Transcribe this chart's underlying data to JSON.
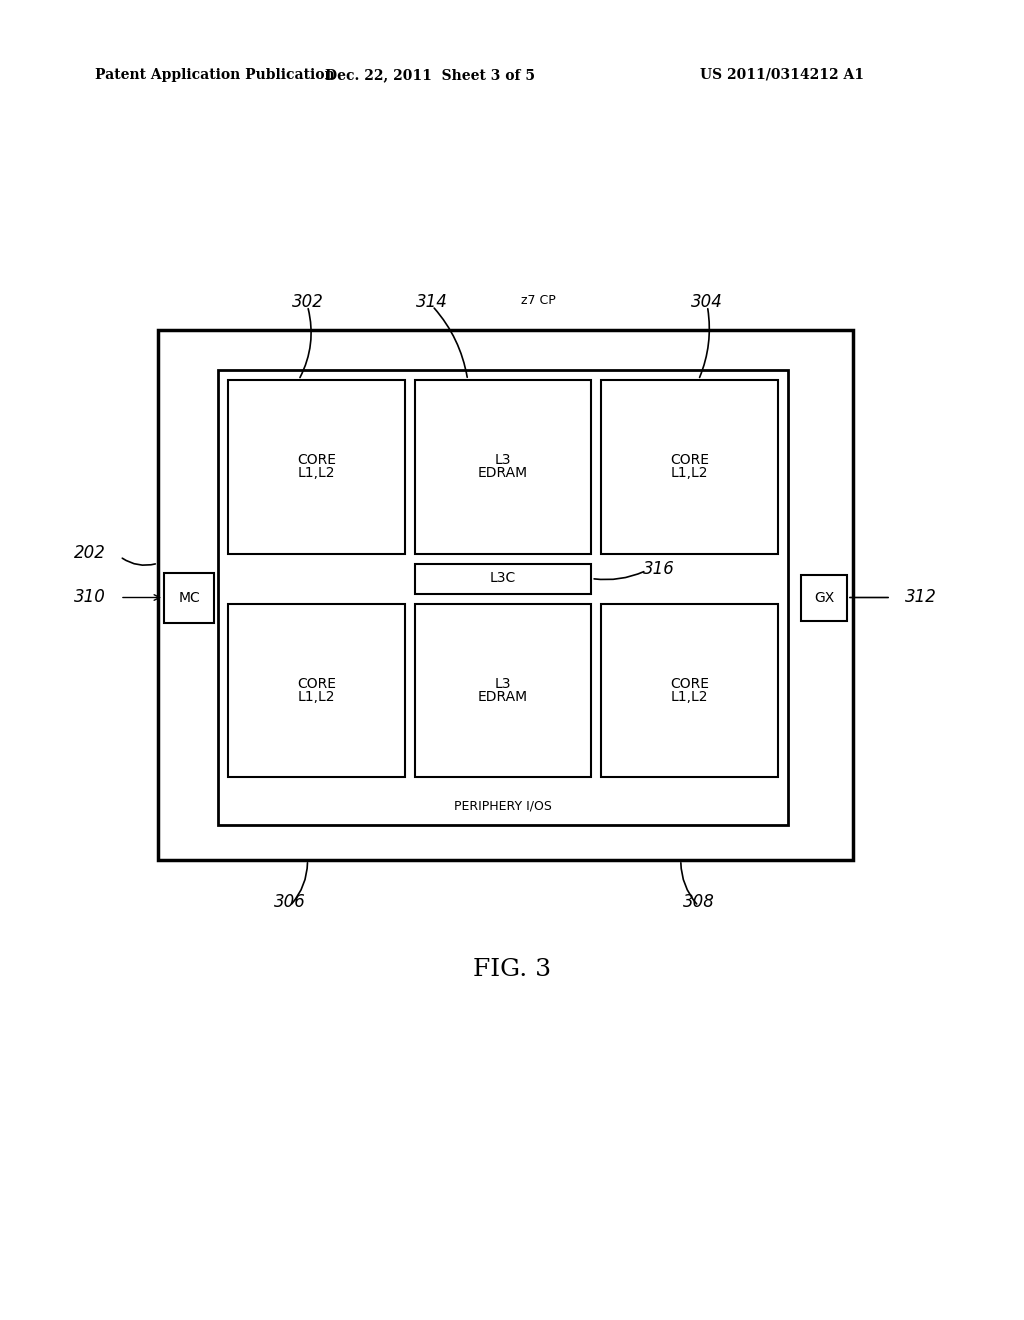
{
  "bg_color": "#ffffff",
  "header_left": "Patent Application Publication",
  "header_mid": "Dec. 22, 2011  Sheet 3 of 5",
  "header_right": "US 2011/0314212 A1",
  "fig_label": "FIG. 3"
}
